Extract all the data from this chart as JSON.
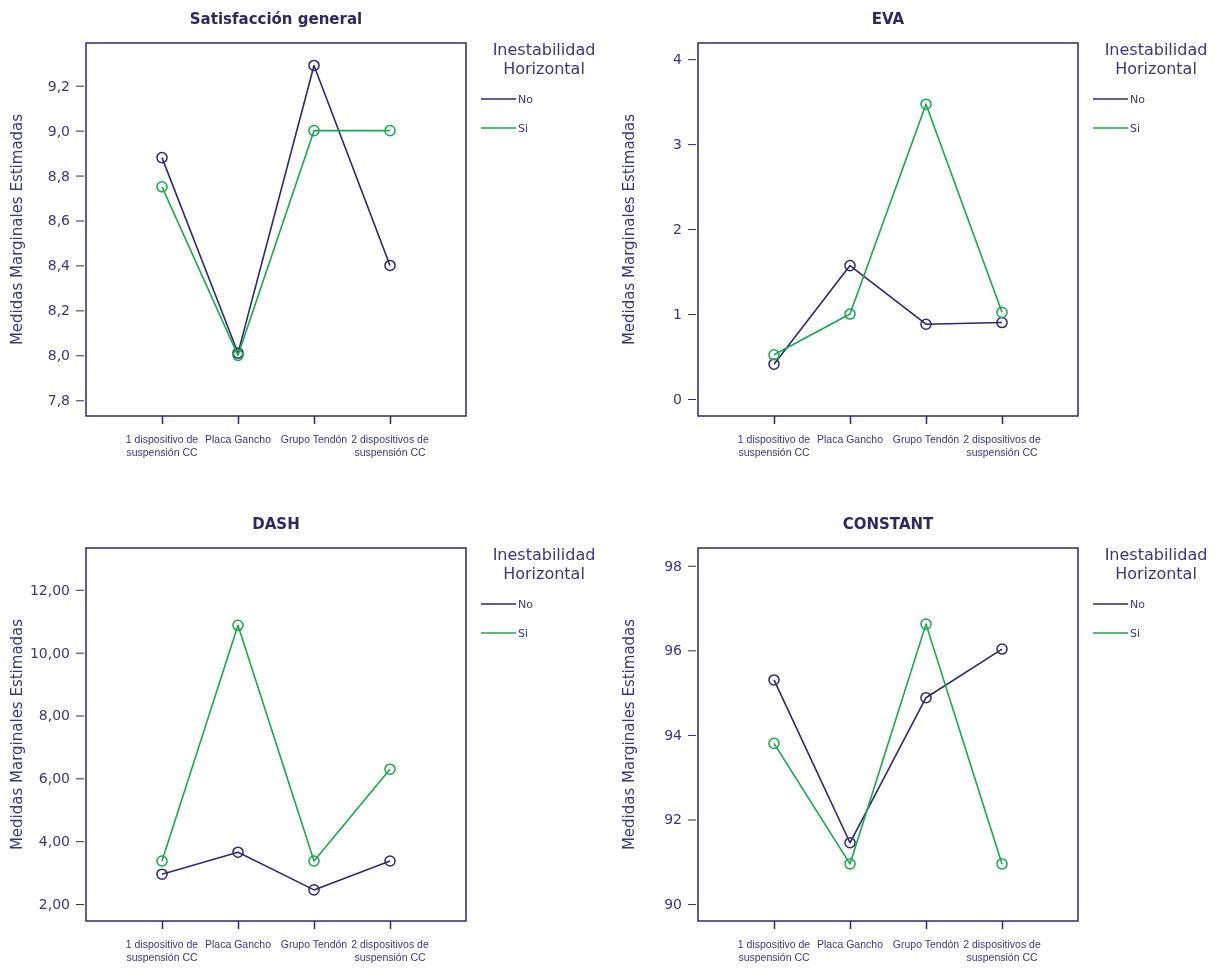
{
  "chart_data": [
    {
      "type": "line",
      "title": "Satisfacción general",
      "ylabel": "Medidas Marginales Estimadas",
      "legend_title": "Inestabilidad Horizontal",
      "legend": "top right",
      "marker": "circle",
      "categories": [
        "1 dispositivo de suspensión CC",
        "Placa Gancho",
        "Grupo Tendón",
        "2 dispositivos de suspensión CC"
      ],
      "ylim": [
        7.73,
        9.39
      ],
      "yticks": [
        {
          "value": 7.8,
          "label": "7,8"
        },
        {
          "value": 8.0,
          "label": "8,0"
        },
        {
          "value": 8.2,
          "label": "8,2"
        },
        {
          "value": 8.4,
          "label": "8,4"
        },
        {
          "value": 8.6,
          "label": "8,6"
        },
        {
          "value": 8.8,
          "label": "8,8"
        },
        {
          "value": 9.0,
          "label": "9,0"
        },
        {
          "value": 9.2,
          "label": "9,2"
        }
      ],
      "series": [
        {
          "name": "No",
          "color": "#2e2a6b",
          "values": [
            8.88,
            8.01,
            9.29,
            8.4
          ]
        },
        {
          "name": "Si",
          "color": "#1aa84c",
          "values": [
            8.75,
            8.0,
            9.0,
            9.0
          ]
        }
      ]
    },
    {
      "type": "line",
      "title": "EVA",
      "ylabel": "Medidas Marginales Estimadas",
      "legend_title": "Inestabilidad Horizontal",
      "legend": "top right",
      "marker": "circle",
      "categories": [
        "1 dispositivo de suspensión CC",
        "Placa Gancho",
        "Grupo Tendón",
        "2 dispositivos de suspensión CC"
      ],
      "ylim": [
        -0.2,
        4.19
      ],
      "yticks": [
        0,
        1,
        2,
        3,
        4
      ],
      "series": [
        {
          "name": "No",
          "color": "#2e2a6b",
          "values": [
            0.41,
            1.57,
            0.88,
            0.9
          ]
        },
        {
          "name": "Si",
          "color": "#1aa84c",
          "values": [
            0.52,
            1.0,
            3.47,
            1.02
          ]
        }
      ]
    },
    {
      "type": "line",
      "title": "DASH",
      "ylabel": "Medidas Marginales Estimadas",
      "legend_title": "Inestabilidad Horizontal",
      "legend": "top right",
      "marker": "circle",
      "categories": [
        "1 dispositivo de suspensión CC",
        "Placa Gancho",
        "Grupo Tendón",
        "2 dispositivos de suspensión CC"
      ],
      "ylim": [
        1.46,
        13.33
      ],
      "yticks": [
        {
          "value": 2,
          "label": "2,00"
        },
        {
          "value": 4,
          "label": "4,00"
        },
        {
          "value": 6,
          "label": "6,00"
        },
        {
          "value": 8,
          "label": "8,00"
        },
        {
          "value": 10,
          "label": "10,00"
        },
        {
          "value": 12,
          "label": "12,00"
        }
      ],
      "series": [
        {
          "name": "No",
          "color": "#2e2a6b",
          "values": [
            2.95,
            3.65,
            2.45,
            3.37
          ]
        },
        {
          "name": "Si",
          "color": "#1aa84c",
          "values": [
            3.37,
            10.87,
            3.37,
            6.29
          ]
        }
      ]
    },
    {
      "type": "line",
      "title": "CONSTANT",
      "ylabel": "Medidas Marginales Estimadas",
      "legend_title": "Inestabilidad Horizontal",
      "legend": "top right",
      "marker": "circle",
      "categories": [
        "1 dispositivo de suspensión CC",
        "Placa Gancho",
        "Grupo Tendón",
        "2 dispositivos de suspensión CC"
      ],
      "ylim": [
        89.6,
        98.42
      ],
      "yticks": [
        90,
        92,
        94,
        96,
        98
      ],
      "series": [
        {
          "name": "No",
          "color": "#2e2a6b",
          "values": [
            95.3,
            91.45,
            94.88,
            96.03
          ]
        },
        {
          "name": "Si",
          "color": "#1aa84c",
          "values": [
            93.8,
            90.95,
            96.62,
            90.95
          ]
        }
      ]
    }
  ]
}
